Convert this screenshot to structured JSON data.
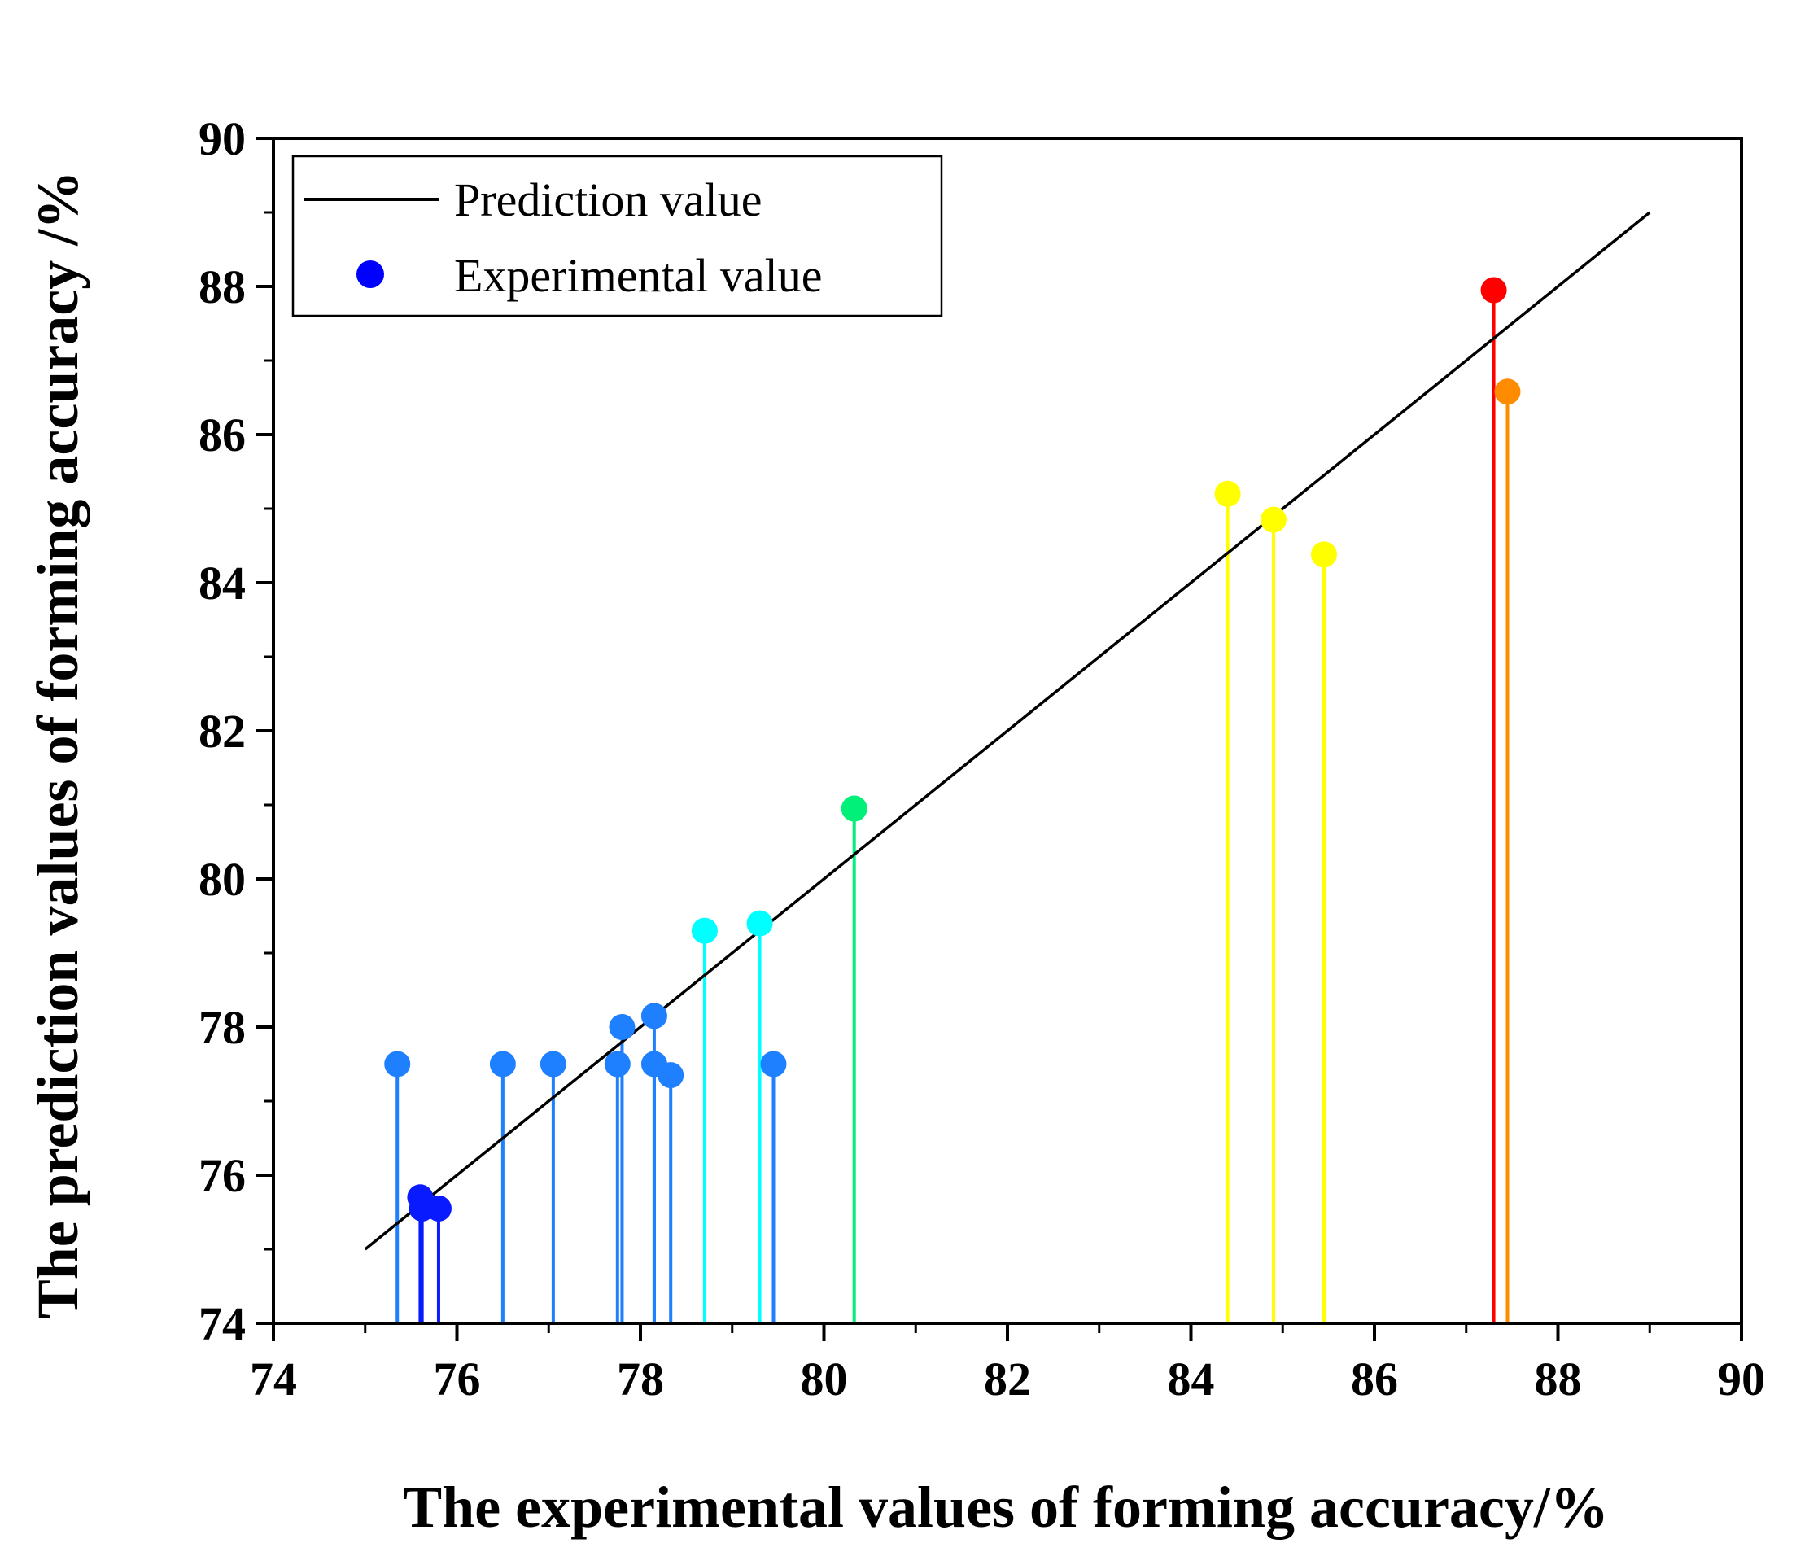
{
  "chart_data": {
    "type": "scatter",
    "xlabel": "The experimental values of forming accuracy/%",
    "ylabel": "The prediction values of forming accuracy /%",
    "xlim": [
      74,
      90
    ],
    "ylim": [
      74,
      90
    ],
    "xticks": [
      "74",
      "76",
      "78",
      "80",
      "82",
      "84",
      "86",
      "88",
      "90"
    ],
    "yticks": [
      "74",
      "76",
      "78",
      "80",
      "82",
      "84",
      "86",
      "88",
      "90"
    ],
    "legend": {
      "position": "top-left",
      "entries": [
        {
          "label": "Prediction value",
          "kind": "line"
        },
        {
          "label": "Experimental value",
          "kind": "marker"
        }
      ]
    },
    "series": [
      {
        "name": "Prediction value",
        "kind": "line",
        "color": "#000000",
        "x": [
          75.0,
          89.0
        ],
        "y": [
          75.0,
          89.0
        ]
      },
      {
        "name": "Experimental value",
        "kind": "stem-scatter",
        "legend_color": "#0000ff",
        "points": [
          {
            "x": 75.35,
            "y": 77.5,
            "color": "#1e7fff"
          },
          {
            "x": 75.6,
            "y": 75.7,
            "color": "#0a1aff"
          },
          {
            "x": 75.62,
            "y": 75.55,
            "color": "#0a1aff"
          },
          {
            "x": 75.8,
            "y": 75.55,
            "color": "#0a1aff"
          },
          {
            "x": 76.5,
            "y": 77.5,
            "color": "#1e7fff"
          },
          {
            "x": 77.05,
            "y": 77.5,
            "color": "#1e7fff"
          },
          {
            "x": 77.75,
            "y": 77.5,
            "color": "#1e7fff"
          },
          {
            "x": 77.8,
            "y": 78.0,
            "color": "#1e7fff"
          },
          {
            "x": 78.15,
            "y": 78.15,
            "color": "#1e7fff"
          },
          {
            "x": 78.15,
            "y": 77.5,
            "color": "#1e7fff"
          },
          {
            "x": 78.33,
            "y": 77.35,
            "color": "#1e7fff"
          },
          {
            "x": 78.7,
            "y": 79.3,
            "color": "#00ffff"
          },
          {
            "x": 79.3,
            "y": 79.4,
            "color": "#00ffff"
          },
          {
            "x": 79.45,
            "y": 77.5,
            "color": "#1e7fff"
          },
          {
            "x": 80.33,
            "y": 80.95,
            "color": "#00f07a"
          },
          {
            "x": 84.4,
            "y": 85.2,
            "color": "#ffff00"
          },
          {
            "x": 84.9,
            "y": 84.85,
            "color": "#ffff00"
          },
          {
            "x": 85.45,
            "y": 84.38,
            "color": "#ffff00"
          },
          {
            "x": 87.3,
            "y": 87.95,
            "color": "#ff0000"
          },
          {
            "x": 87.45,
            "y": 86.58,
            "color": "#ff8c00"
          }
        ]
      }
    ]
  }
}
